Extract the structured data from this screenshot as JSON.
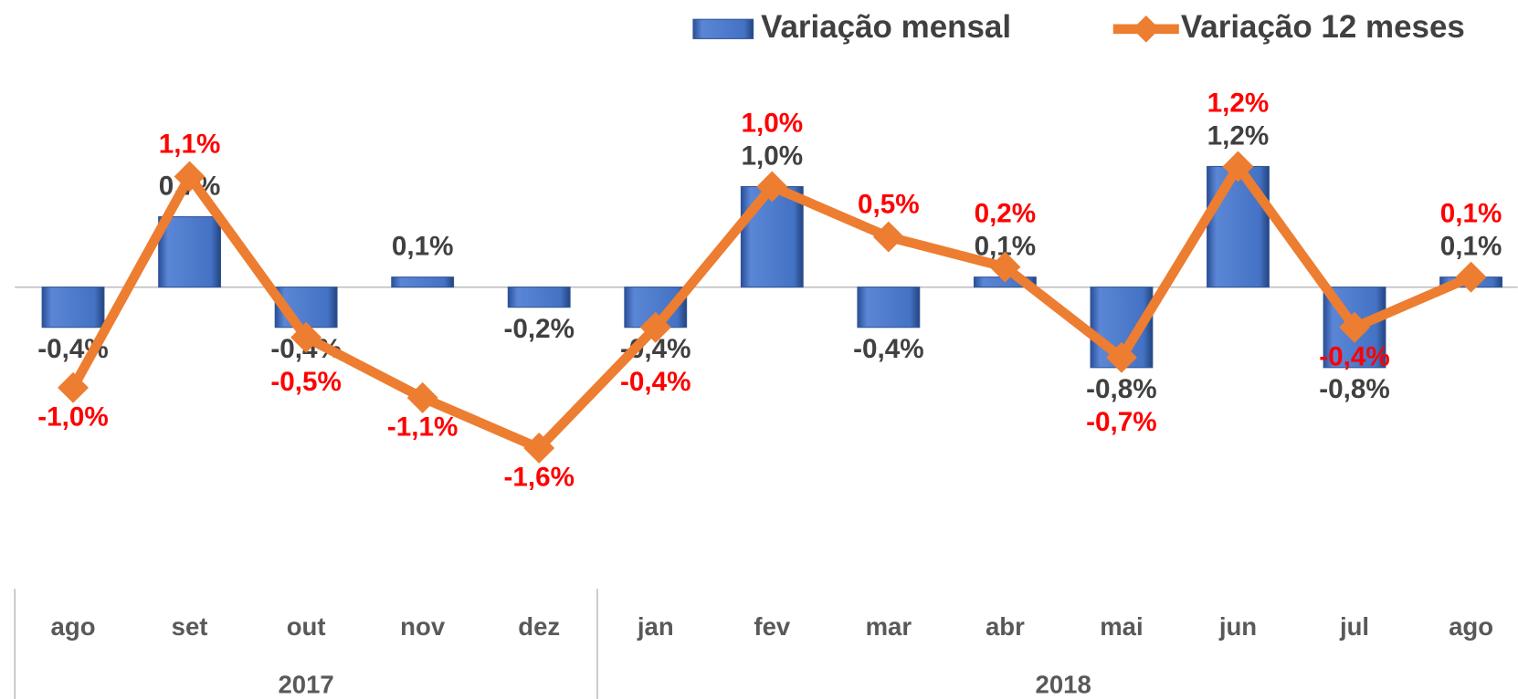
{
  "chart_data": {
    "type": "bar",
    "categories": [
      "ago",
      "set",
      "out",
      "nov",
      "dez",
      "jan",
      "fev",
      "mar",
      "abr",
      "mai",
      "jun",
      "jul",
      "ago"
    ],
    "category_groups": [
      {
        "name": "2017",
        "count": 5
      },
      {
        "name": "2018",
        "count": 8
      }
    ],
    "ylim": [
      -3,
      2
    ],
    "series": [
      {
        "name": "Variação mensal",
        "type": "bar",
        "color": "#4472c4",
        "label_color": "#404040",
        "values": [
          -0.4,
          0.7,
          -0.4,
          0.1,
          -0.2,
          -0.4,
          1.0,
          -0.4,
          0.1,
          -0.8,
          1.2,
          -0.8,
          0.1
        ],
        "value_labels": [
          "-0,4%",
          "0,7%",
          "-0,4%",
          "0,1%",
          "-0,2%",
          "-0,4%",
          "1,0%",
          "-0,4%",
          "0,1%",
          "-0,8%",
          "1,2%",
          "-0,8%",
          "0,1%"
        ]
      },
      {
        "name": "Variação 12 meses",
        "type": "line",
        "color": "#ed7d31",
        "label_color": "#ff0000",
        "values": [
          -1.0,
          1.1,
          -0.5,
          -1.1,
          -1.6,
          -0.4,
          1.0,
          0.5,
          0.2,
          -0.7,
          1.2,
          -0.4,
          0.1
        ],
        "value_labels": [
          "-1,0%",
          "1,1%",
          "-0,5%",
          "-1,1%",
          "-1,6%",
          "-0,4%",
          "1,0%",
          "0,5%",
          "0,2%",
          "-0,7%",
          "1,2%",
          "-0,4%",
          "0,1%"
        ]
      }
    ],
    "legend": "top-right"
  }
}
